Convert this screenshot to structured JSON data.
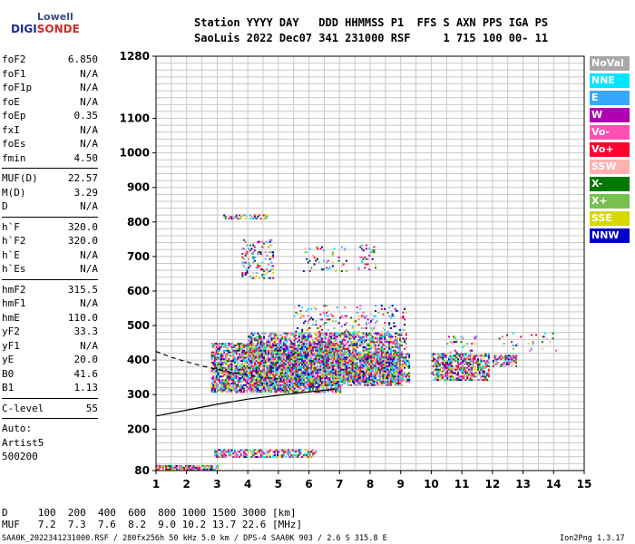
{
  "logo": {
    "line1": "Lowell",
    "line2_a": "DIGI",
    "line2_b": "SONDE"
  },
  "header": {
    "row1": "Station YYYY DAY   DDD HHMMSS P1  FFS S AXN PPS IGA PS",
    "row2": "SaoLuis 2022 Dec07 341 231000 RSF     1 715 100 00- 11"
  },
  "params": {
    "group1": [
      {
        "k": "foF2",
        "v": "6.850"
      },
      {
        "k": "foF1",
        "v": "N/A"
      },
      {
        "k": "foF1p",
        "v": "N/A"
      },
      {
        "k": "foE",
        "v": "N/A"
      },
      {
        "k": "foEp",
        "v": "0.35"
      },
      {
        "k": "fxI",
        "v": "N/A"
      },
      {
        "k": "foEs",
        "v": "N/A"
      },
      {
        "k": "fmin",
        "v": "4.50"
      }
    ],
    "group2": [
      {
        "k": "MUF(D)",
        "v": "22.57"
      },
      {
        "k": "M(D)",
        "v": "3.29"
      },
      {
        "k": "D",
        "v": "N/A"
      }
    ],
    "group3": [
      {
        "k": "h`F",
        "v": "320.0"
      },
      {
        "k": "h`F2",
        "v": "320.0"
      },
      {
        "k": "h`E",
        "v": "N/A"
      },
      {
        "k": "h`Es",
        "v": "N/A"
      }
    ],
    "group4": [
      {
        "k": "hmF2",
        "v": "315.5"
      },
      {
        "k": "hmF1",
        "v": "N/A"
      },
      {
        "k": "hmE",
        "v": "110.0"
      },
      {
        "k": "yF2",
        "v": "33.3"
      },
      {
        "k": "yF1",
        "v": "N/A"
      },
      {
        "k": "yE",
        "v": "20.0"
      },
      {
        "k": "B0",
        "v": "41.6"
      },
      {
        "k": "B1",
        "v": "1.13"
      }
    ],
    "group5": [
      {
        "k": "C-level",
        "v": "55"
      }
    ],
    "auto": [
      "Auto:",
      "Artist5",
      "500200"
    ]
  },
  "legend": [
    {
      "label": "NoVal",
      "color": "#a8a8a8"
    },
    {
      "label": "NNE",
      "color": "#00e6ff"
    },
    {
      "label": "E",
      "color": "#38a8ff"
    },
    {
      "label": "W",
      "color": "#b000b0"
    },
    {
      "label": "Vo-",
      "color": "#ff50b4"
    },
    {
      "label": "Vo+",
      "color": "#ff0030"
    },
    {
      "label": "SSW",
      "color": "#ffb0b0"
    },
    {
      "label": "X-",
      "color": "#007800"
    },
    {
      "label": "X+",
      "color": "#78c050"
    },
    {
      "label": "SSE",
      "color": "#d8d800"
    },
    {
      "label": "NNW",
      "color": "#0000c8"
    }
  ],
  "footer": {
    "d_row": "D     100  200  400  600  800 1000 1500 3000 [km]",
    "muf_row": "MUF   7.2  7.3  7.6  8.2  9.0 10.2 13.7 22.6 [MHz]",
    "info": "SAA0K_2022341231000.RSF / 280fx256h 50 kHz 5.0 km / DPS-4 SAA0K 903 / 2.6 S 315.8 E",
    "version": "Ion2Png 1.3.17"
  },
  "chart_data": {
    "type": "scatter",
    "xlim": [
      1,
      15
    ],
    "ylim": [
      80,
      1280
    ],
    "x_ticks": [
      "1",
      "2",
      "3",
      "4",
      "5",
      "6",
      "7",
      "8",
      "9",
      "10",
      "11",
      "12",
      "13",
      "14",
      "15"
    ],
    "y_ticks": [
      "80",
      "200",
      "300",
      "400",
      "500",
      "600",
      "700",
      "800",
      "900",
      "1000",
      "1100",
      "1280"
    ],
    "grid": true,
    "curves": {
      "profile": {
        "x": [
          1.0,
          2.0,
          3.0,
          4.0,
          5.0,
          6.0,
          6.85
        ],
        "y": [
          238,
          255,
          272,
          287,
          298,
          308,
          316
        ]
      },
      "virtual": {
        "x": [
          1.0,
          1.5,
          2.0,
          2.5,
          3.0,
          3.5,
          4.0,
          4.5,
          5.0
        ],
        "y": [
          425,
          408,
          395,
          383,
          373,
          364,
          356,
          350,
          345
        ]
      }
    },
    "echo_regions": [
      {
        "x0": 2.8,
        "x1": 7.0,
        "y0": 310,
        "y1": 450,
        "density": 0.75
      },
      {
        "x0": 4.0,
        "x1": 9.0,
        "y0": 330,
        "y1": 480,
        "density": 0.55
      },
      {
        "x0": 5.5,
        "x1": 9.2,
        "y0": 360,
        "y1": 560,
        "density": 0.14
      },
      {
        "x0": 7.0,
        "x1": 9.3,
        "y0": 340,
        "y1": 420,
        "density": 0.75
      },
      {
        "x0": 10.0,
        "x1": 11.9,
        "y0": 345,
        "y1": 420,
        "density": 0.65
      },
      {
        "x0": 10.5,
        "x1": 11.5,
        "y0": 420,
        "y1": 470,
        "density": 0.12
      },
      {
        "x0": 12.0,
        "x1": 12.8,
        "y0": 385,
        "y1": 415,
        "density": 0.5
      },
      {
        "x0": 12.2,
        "x1": 14.2,
        "y0": 430,
        "y1": 480,
        "density": 0.08
      },
      {
        "x0": 3.8,
        "x1": 4.8,
        "y0": 640,
        "y1": 750,
        "density": 0.2
      },
      {
        "x0": 5.8,
        "x1": 7.2,
        "y0": 660,
        "y1": 730,
        "density": 0.12
      },
      {
        "x0": 7.6,
        "x1": 8.2,
        "y0": 660,
        "y1": 740,
        "density": 0.12
      },
      {
        "x0": 2.9,
        "x1": 6.2,
        "y0": 122,
        "y1": 143,
        "density": 0.55
      },
      {
        "x0": 1.0,
        "x1": 3.0,
        "y0": 86,
        "y1": 96,
        "density": 0.8
      },
      {
        "x0": 3.2,
        "x1": 4.6,
        "y0": 812,
        "y1": 826,
        "density": 0.5
      }
    ]
  }
}
